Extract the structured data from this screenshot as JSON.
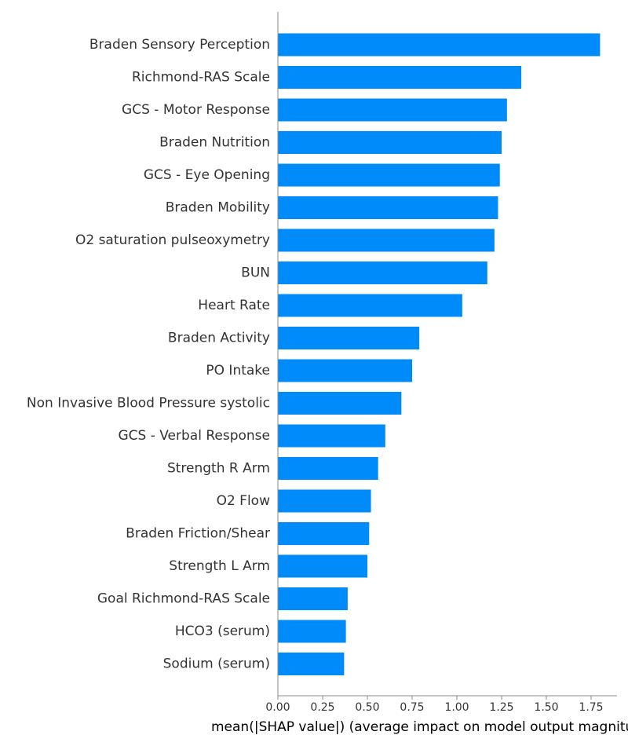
{
  "chart_data": {
    "type": "bar",
    "orientation": "horizontal",
    "categories": [
      "Braden Sensory Perception",
      "Richmond-RAS Scale",
      "GCS - Motor Response",
      "Braden Nutrition",
      "GCS - Eye Opening",
      "Braden Mobility",
      "O2 saturation pulseoxymetry",
      "BUN",
      "Heart Rate",
      "Braden Activity",
      "PO Intake",
      "Non Invasive Blood Pressure systolic",
      "GCS - Verbal Response",
      "Strength R Arm",
      "O2 Flow",
      "Braden Friction/Shear",
      "Strength L Arm",
      "Goal Richmond-RAS Scale",
      "HCO3 (serum)",
      "Sodium (serum)"
    ],
    "values": [
      1.8,
      1.36,
      1.28,
      1.25,
      1.24,
      1.23,
      1.21,
      1.17,
      1.03,
      0.79,
      0.75,
      0.69,
      0.6,
      0.56,
      0.52,
      0.51,
      0.5,
      0.39,
      0.38,
      0.37
    ],
    "xticks": [
      "0.00",
      "0.25",
      "0.50",
      "0.75",
      "1.00",
      "1.25",
      "1.50",
      "1.75"
    ],
    "xlim": [
      0,
      1.9
    ],
    "xlabel": "mean(|SHAP value|) (average impact on model output magnitude)",
    "ylabel": "",
    "title": "",
    "bar_color": "#008bfb",
    "axis_color": "#888888",
    "grid": false
  }
}
